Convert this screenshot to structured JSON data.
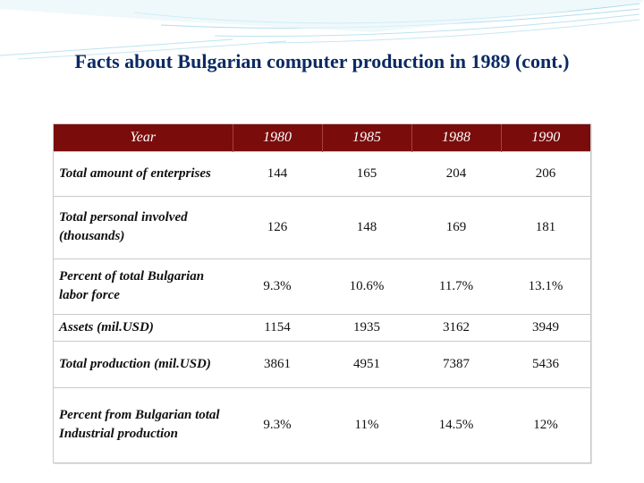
{
  "title": "Facts about Bulgarian computer production in 1989 (cont.)",
  "colors": {
    "header_bg": "#7a0c0c",
    "header_text": "#ffffff",
    "title_text": "#0b2a63",
    "decoration": "#8fd0e8"
  },
  "table": {
    "headers": [
      "Year",
      "1980",
      "1985",
      "1988",
      "1990"
    ],
    "rows": [
      {
        "label": "Total amount of enterprises",
        "values": [
          "144",
          "165",
          "204",
          "206"
        ]
      },
      {
        "label": "Total personal involved (thousands)",
        "values": [
          "126",
          "148",
          "169",
          "181"
        ]
      },
      {
        "label": "Percent of total Bulgarian labor force",
        "values": [
          "9.3%",
          "10.6%",
          "11.7%",
          "13.1%"
        ]
      },
      {
        "label": "Assets (mil.USD)",
        "values": [
          "1154",
          "1935",
          "3162",
          "3949"
        ]
      },
      {
        "label": "Total production (mil.USD)",
        "values": [
          "3861",
          "4951",
          "7387",
          "5436"
        ]
      },
      {
        "label": "Percent from Bulgarian total Industrial production",
        "values": [
          "9.3%",
          "11%",
          "14.5%",
          "12%"
        ]
      }
    ]
  }
}
